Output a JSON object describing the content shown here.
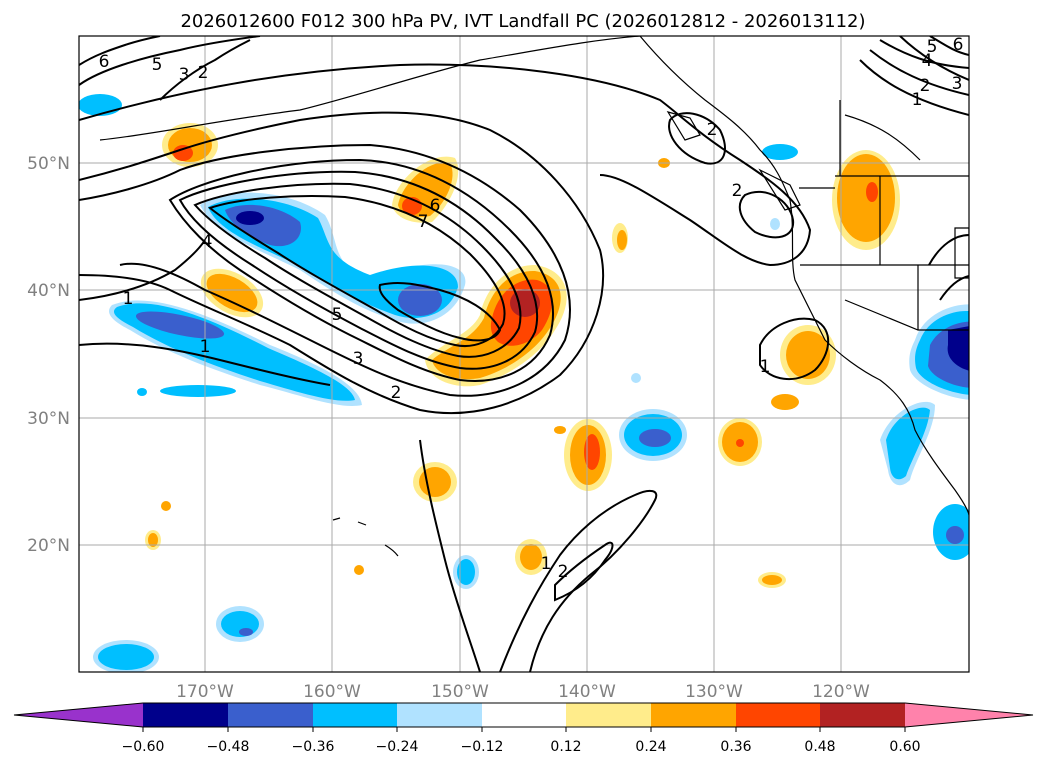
{
  "title": "2026012600 F012 300 hPa PV, IVT Landfall PC (2026012812 - 2026013112)",
  "lat_labels": [
    "50°N",
    "40°N",
    "30°N",
    "20°N"
  ],
  "lon_labels": [
    "170°W",
    "160°W",
    "150°W",
    "140°W",
    "130°W",
    "120°W"
  ],
  "colorbar": {
    "tick_labels": [
      "−0.60",
      "−0.48",
      "−0.36",
      "−0.24",
      "−0.12",
      "0.12",
      "0.24",
      "0.36",
      "0.48",
      "0.60"
    ],
    "colors": [
      "#9932cc",
      "#00008b",
      "#3a5fcd",
      "#00bfff",
      "#b0e2ff",
      "#ffffff",
      "#ffec8b",
      "#ffa500",
      "#ff4500",
      "#b22222",
      "#ff82ab"
    ]
  },
  "contour_labels": [
    "6",
    "5",
    "3",
    "2",
    "6",
    "7",
    "4",
    "1",
    "1",
    "5",
    "3",
    "2",
    "2",
    "2",
    "1",
    "1",
    "2",
    "6",
    "5",
    "4",
    "2",
    "3",
    "1"
  ],
  "colors": {
    "deep_negative": "#00008b",
    "negative_strong": "#3a5fcd",
    "negative": "#00bfff",
    "negative_weak": "#b0e2ff",
    "positive_weak": "#ffec8b",
    "positive": "#ffa500",
    "positive_strong": "#ff4500",
    "deep_positive": "#b22222"
  }
}
